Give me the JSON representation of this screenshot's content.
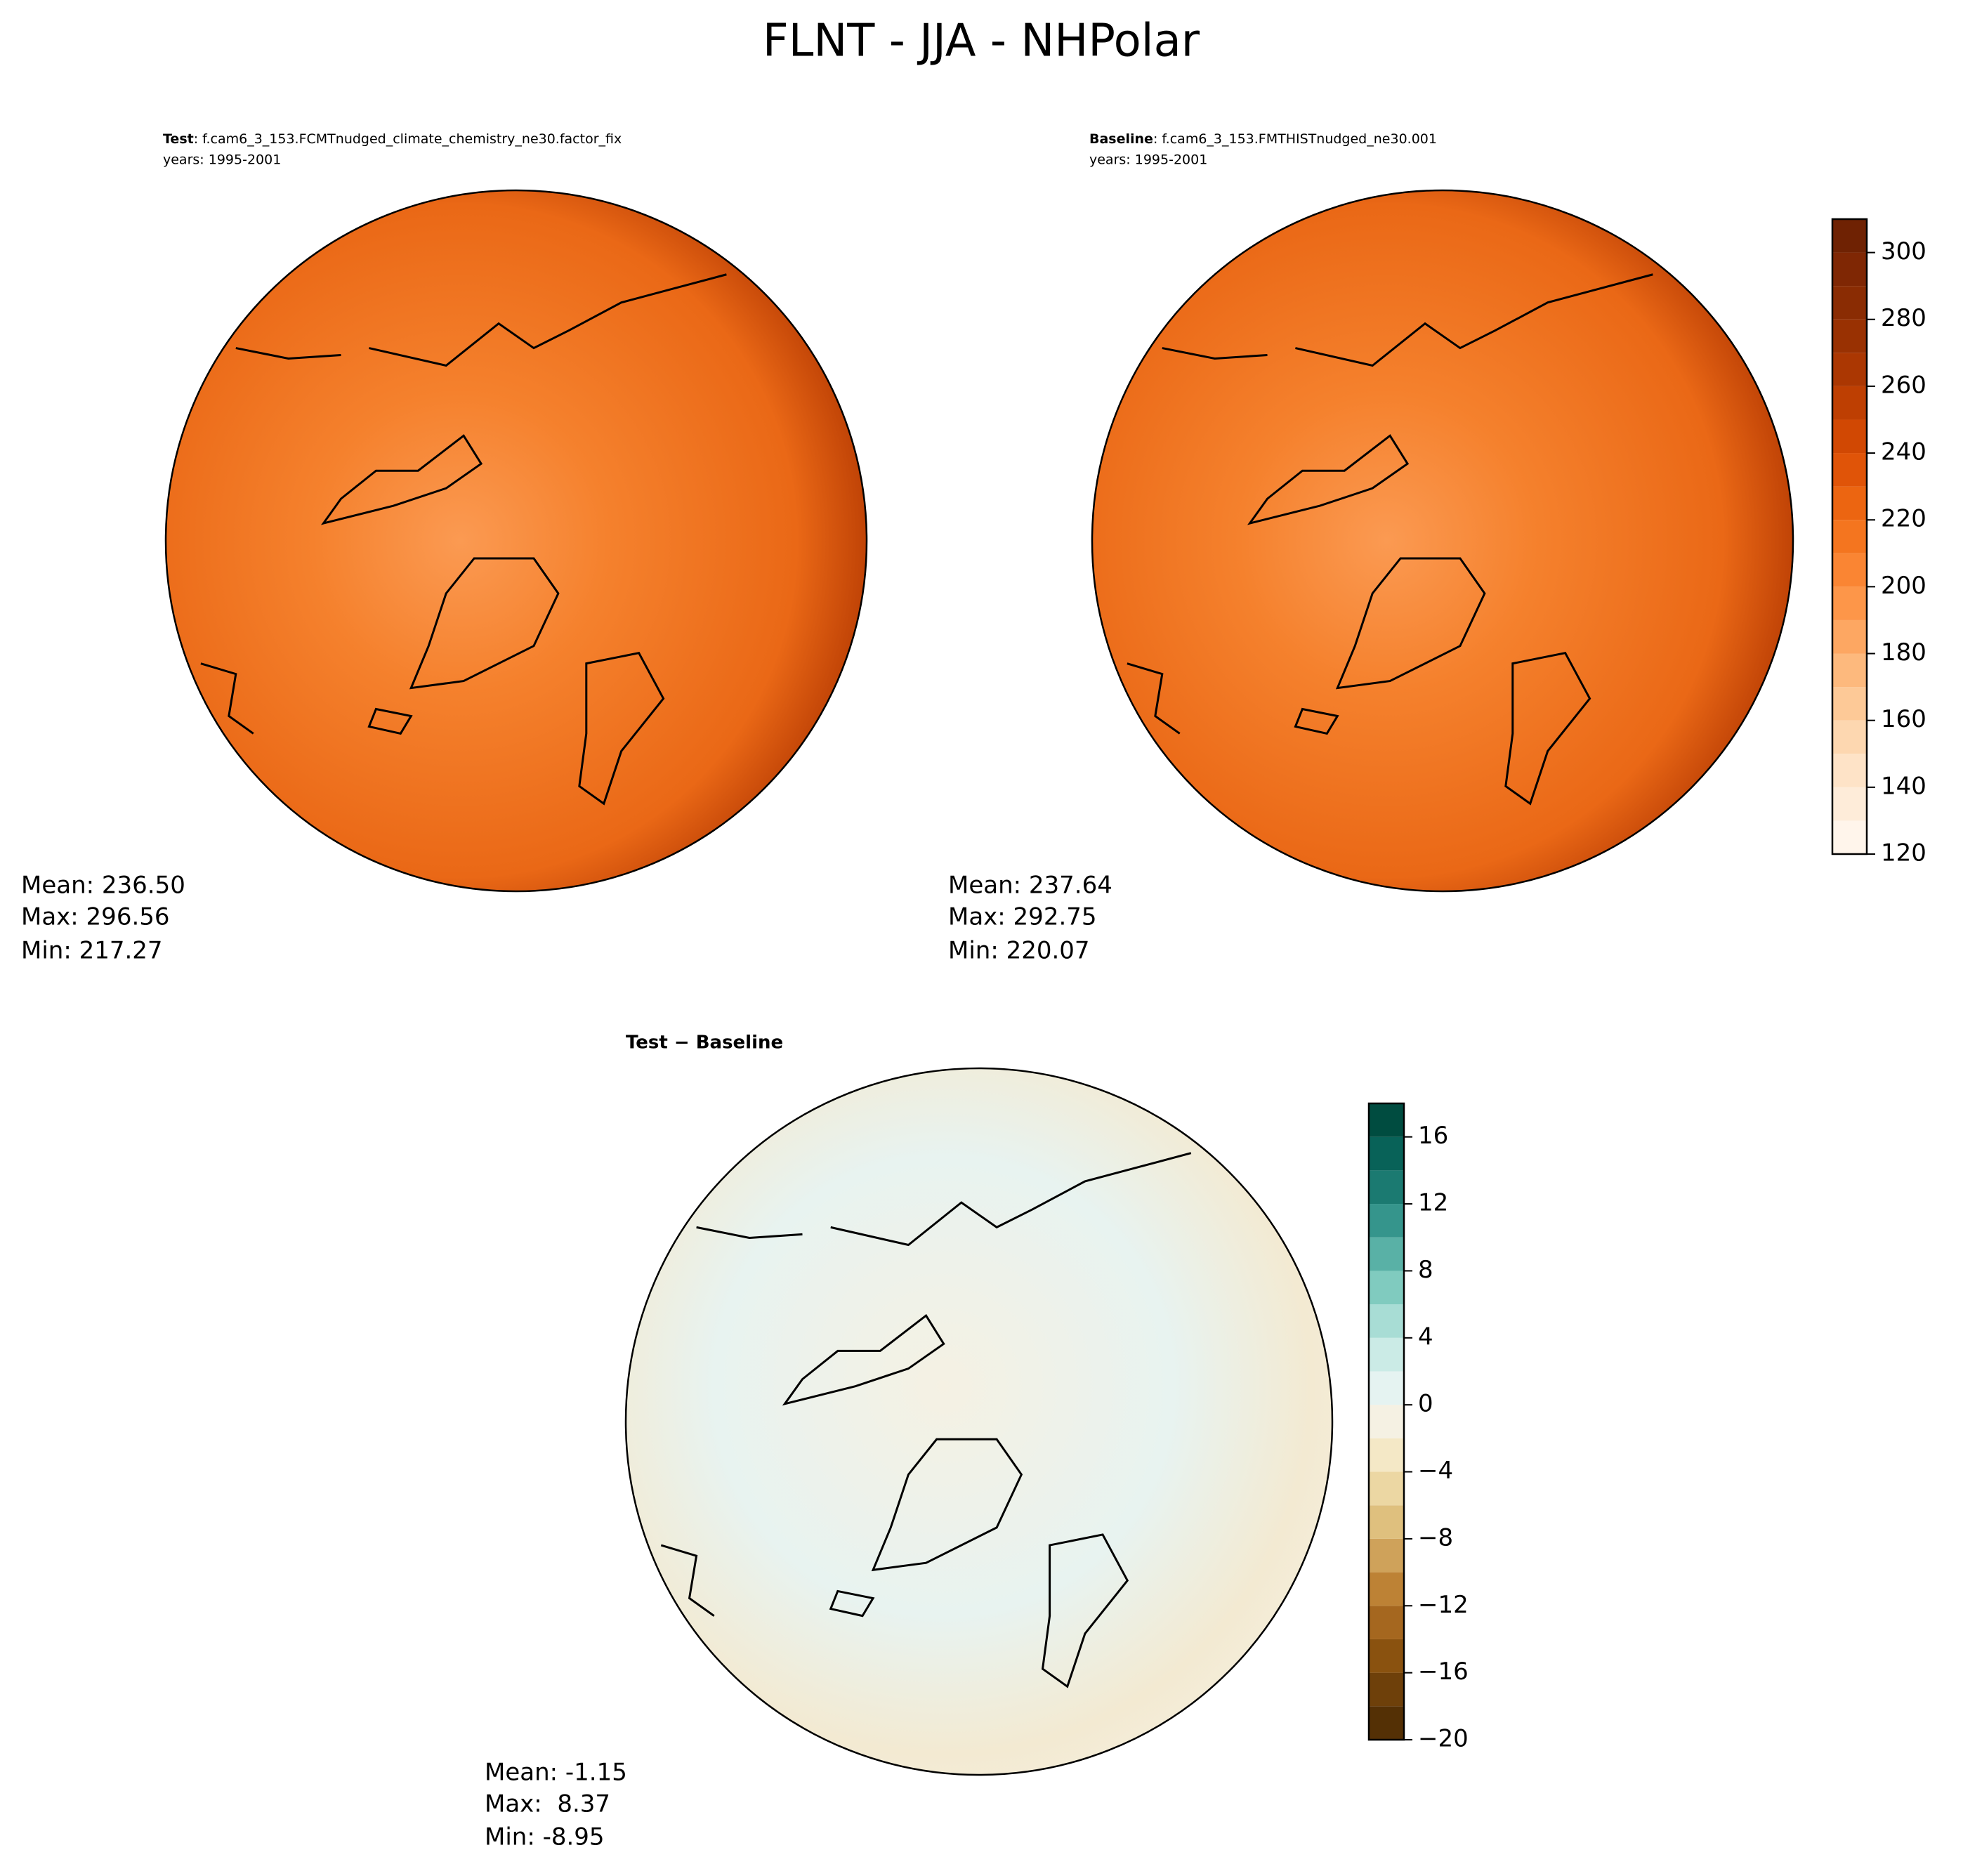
{
  "title": "FLNT - JJA - NHPolar",
  "panels": [
    {
      "name": "Test",
      "case": ": f.cam6_3_153.FCMTnudged_climate_chemistry_ne30.factor_fix",
      "years": "years: 1995-2001",
      "stats": [
        "Mean: 236.50",
        "Max: 296.56",
        "Min: 217.27"
      ]
    },
    {
      "name": "Baseline",
      "case": ": f.cam6_3_153.FMTHISTnudged_ne30.001",
      "years": "years: 1995-2001",
      "stats": [
        "Mean: 237.64",
        "Max: 292.75",
        "Min: 220.07"
      ]
    },
    {
      "name": "Test − Baseline",
      "stats": [
        "Mean: -1.15",
        "Max:  8.37",
        "Min: -8.95"
      ]
    }
  ],
  "colorbars": [
    {
      "levels": [
        120,
        130,
        140,
        150,
        160,
        170,
        180,
        190,
        200,
        210,
        220,
        230,
        240,
        250,
        260,
        270,
        280,
        290,
        300,
        310
      ],
      "colors": [
        "#fff5eb",
        "#feecd9",
        "#fee3c7",
        "#fdd7b0",
        "#fdc997",
        "#fdb97d",
        "#fda762",
        "#fd9649",
        "#fa8533",
        "#f4751f",
        "#ec6511",
        "#e05408",
        "#d14803",
        "#be3f02",
        "#ab3702",
        "#993102",
        "#8a2c03",
        "#7f2704",
        "#6f2203"
      ],
      "ticks": [
        120,
        140,
        160,
        180,
        200,
        220,
        240,
        260,
        280,
        300
      ]
    },
    {
      "levels": [
        -20,
        -18,
        -16,
        -14,
        -12,
        -10,
        -8,
        -6,
        -4,
        -2,
        0,
        2,
        4,
        6,
        8,
        10,
        12,
        14,
        16,
        18
      ],
      "colors": [
        "#543005",
        "#6e400a",
        "#8a520f",
        "#a5671f",
        "#bd8235",
        "#cfa25a",
        "#dfc07e",
        "#ecd7a3",
        "#f4e8c6",
        "#f5f1e3",
        "#e5f3f1",
        "#cbebe6",
        "#a8ddd5",
        "#80cbbf",
        "#59b1a6",
        "#35958c",
        "#1b7a71",
        "#086258",
        "#004c40"
      ],
      "ticks": [
        {
          "value": -20,
          "label": "−20"
        },
        {
          "value": -16,
          "label": "−16"
        },
        {
          "value": -12,
          "label": "−12"
        },
        {
          "value": -8,
          "label": "−8"
        },
        {
          "value": -4,
          "label": "−4"
        },
        0,
        4,
        8,
        12,
        16
      ]
    }
  ]
}
